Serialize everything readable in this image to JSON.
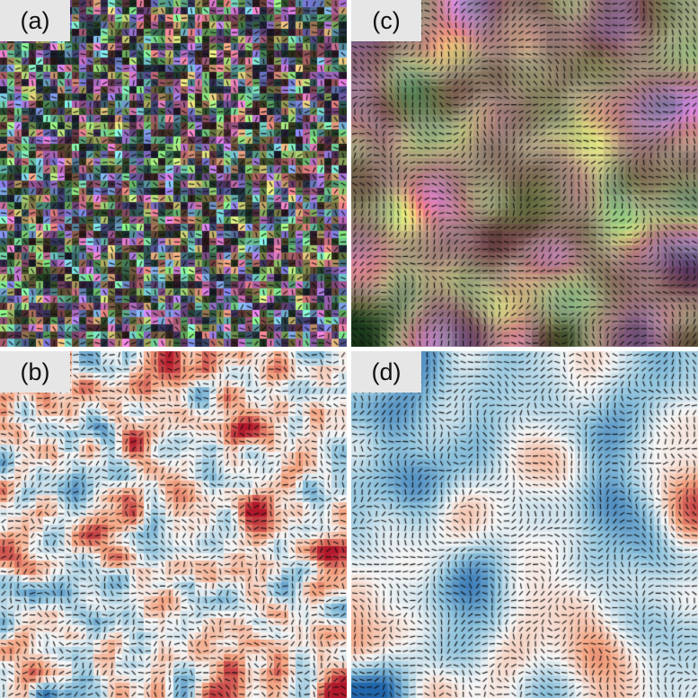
{
  "panels": [
    {
      "id": "a",
      "label": "(a)",
      "colormap": "hsv-texture",
      "smoothness": "none"
    },
    {
      "id": "c",
      "label": "(c)",
      "colormap": "hsv-texture",
      "smoothness": "high"
    },
    {
      "id": "b",
      "label": "(b)",
      "colormap": "red-blue",
      "smoothness": "low"
    },
    {
      "id": "d",
      "label": "(d)",
      "colormap": "red-blue",
      "smoothness": "high"
    }
  ],
  "colors": {
    "red": "#b2182b",
    "white": "#f7f7f7",
    "blue": "#2166ac",
    "label_bg": "#e6e6e6",
    "arrow": "#111111"
  }
}
